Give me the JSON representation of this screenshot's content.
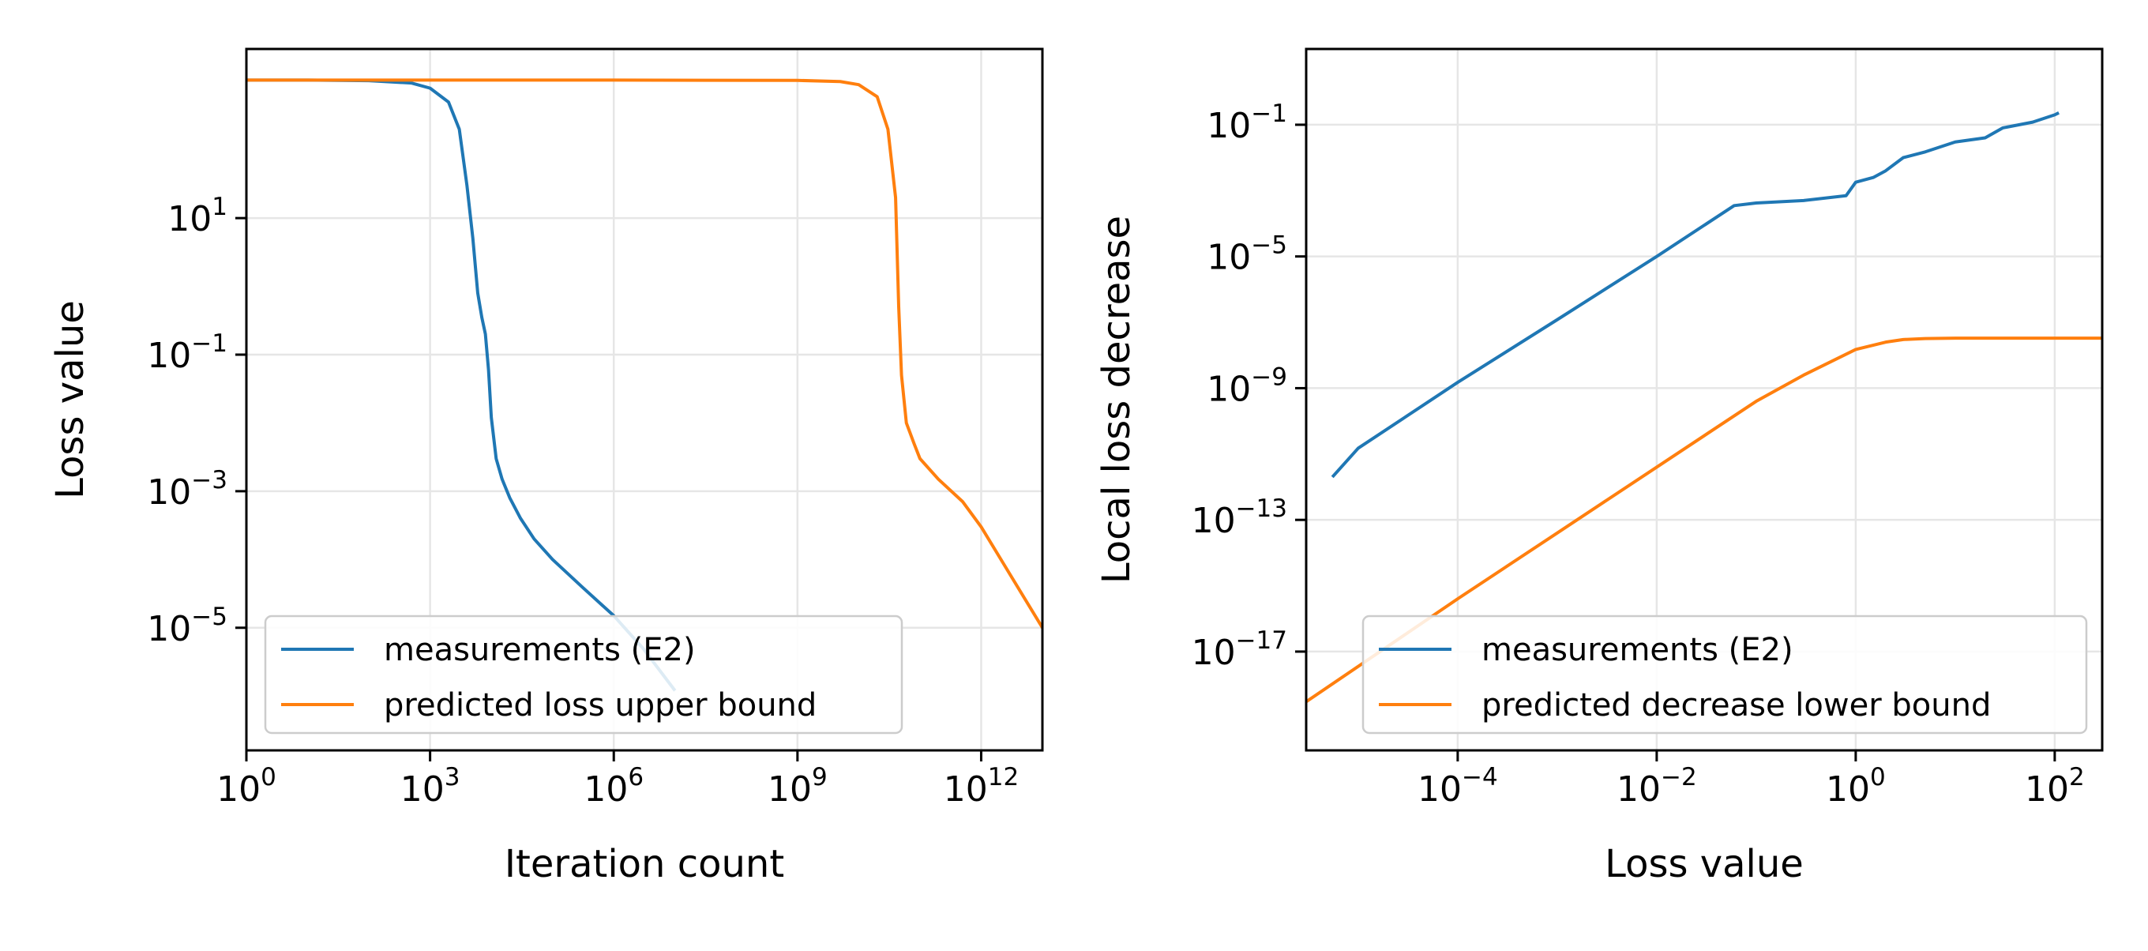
{
  "chart_data": [
    {
      "type": "line",
      "xlabel": "Iteration count",
      "ylabel": "Loss value",
      "xscale": "log",
      "yscale": "log",
      "xlim": [
        1,
        10000000000000.0
      ],
      "ylim": [
        1.6e-07,
        3000
      ],
      "xticks": [
        {
          "base": "10",
          "exp": "0",
          "value": 1
        },
        {
          "base": "10",
          "exp": "3",
          "value": 1000
        },
        {
          "base": "10",
          "exp": "6",
          "value": 1000000
        },
        {
          "base": "10",
          "exp": "9",
          "value": 1000000000
        },
        {
          "base": "10",
          "exp": "12",
          "value": 1000000000000
        }
      ],
      "yticks": [
        {
          "base": "10",
          "exp": "1",
          "value": 10
        },
        {
          "base": "10",
          "exp": "−1",
          "value": 0.1
        },
        {
          "base": "10",
          "exp": "−3",
          "value": 0.001
        },
        {
          "base": "10",
          "exp": "−5",
          "value": 1e-05
        }
      ],
      "grid": true,
      "legend_position": "lower-left",
      "series": [
        {
          "name": "measurements (E2)",
          "color": "#1f77b4",
          "x": [
            1,
            10,
            100,
            500,
            1000,
            2000,
            3000,
            4000,
            5000,
            6000,
            7000,
            8000,
            9000,
            10000,
            12000,
            15000,
            20000,
            30000,
            50000,
            100000,
            300000,
            1000000,
            3000000,
            10000000
          ],
          "y": [
            1050,
            1050,
            1030,
            950,
            800,
            500,
            200,
            30,
            5,
            0.8,
            0.35,
            0.2,
            0.06,
            0.012,
            0.003,
            0.0015,
            0.0008,
            0.0004,
            0.0002,
            0.0001,
            4e-05,
            1.5e-05,
            5e-06,
            1.2e-06
          ]
        },
        {
          "name": "predicted loss upper bound",
          "color": "#ff7f0e",
          "x": [
            1,
            1000000,
            1000000000,
            5000000000,
            10000000000,
            20000000000,
            30000000000,
            40000000000,
            45000000000,
            50000000000,
            60000000000,
            80000000000,
            100000000000,
            200000000000,
            500000000000,
            1000000000000,
            10000000000000
          ],
          "y": [
            1050,
            1050,
            1040,
            1000,
            900,
            600,
            200,
            20,
            0.5,
            0.05,
            0.01,
            0.005,
            0.003,
            0.0015,
            0.0007,
            0.0003,
            1e-05
          ]
        }
      ]
    },
    {
      "type": "line",
      "xlabel": "Loss value",
      "ylabel": "Local loss decrease",
      "xscale": "log",
      "yscale": "log",
      "xlim": [
        3e-06,
        300
      ],
      "ylim": [
        1e-20,
        20
      ],
      "xticks": [
        {
          "base": "10",
          "exp": "−4",
          "value": 0.0001
        },
        {
          "base": "10",
          "exp": "−2",
          "value": 0.01
        },
        {
          "base": "10",
          "exp": "0",
          "value": 1
        },
        {
          "base": "10",
          "exp": "2",
          "value": 100
        }
      ],
      "yticks": [
        {
          "base": "10",
          "exp": "−1",
          "value": 0.1
        },
        {
          "base": "10",
          "exp": "−5",
          "value": 1e-05
        },
        {
          "base": "10",
          "exp": "−9",
          "value": 1e-09
        },
        {
          "base": "10",
          "exp": "−13",
          "value": 1e-13
        },
        {
          "base": "10",
          "exp": "−17",
          "value": 1e-17
        }
      ],
      "grid": true,
      "legend_position": "lower-right",
      "series": [
        {
          "name": "measurements (E2)",
          "color": "#1f77b4",
          "x": [
            5.5e-06,
            1e-05,
            0.0001,
            0.001,
            0.01,
            0.06,
            0.1,
            0.3,
            0.8,
            1.0,
            1.5,
            2,
            3,
            5,
            10,
            20,
            30,
            60,
            100,
            110
          ],
          "y": [
            2e-12,
            1.5e-11,
            1.5e-09,
            1.2e-07,
            1e-05,
            0.00035,
            0.00042,
            0.0005,
            0.0007,
            0.0018,
            0.0025,
            0.004,
            0.01,
            0.015,
            0.03,
            0.04,
            0.08,
            0.12,
            0.2,
            0.23
          ]
        },
        {
          "name": "predicted decrease lower bound",
          "color": "#ff7f0e",
          "x": [
            3e-06,
            0.0001,
            0.001,
            0.01,
            0.1,
            0.3,
            1,
            2,
            3,
            5,
            10,
            300
          ],
          "y": [
            3e-19,
            4e-16,
            4e-14,
            4e-12,
            4e-10,
            2.5e-09,
            1.5e-08,
            2.5e-08,
            3e-08,
            3.2e-08,
            3.3e-08,
            3.3e-08
          ]
        }
      ]
    }
  ]
}
